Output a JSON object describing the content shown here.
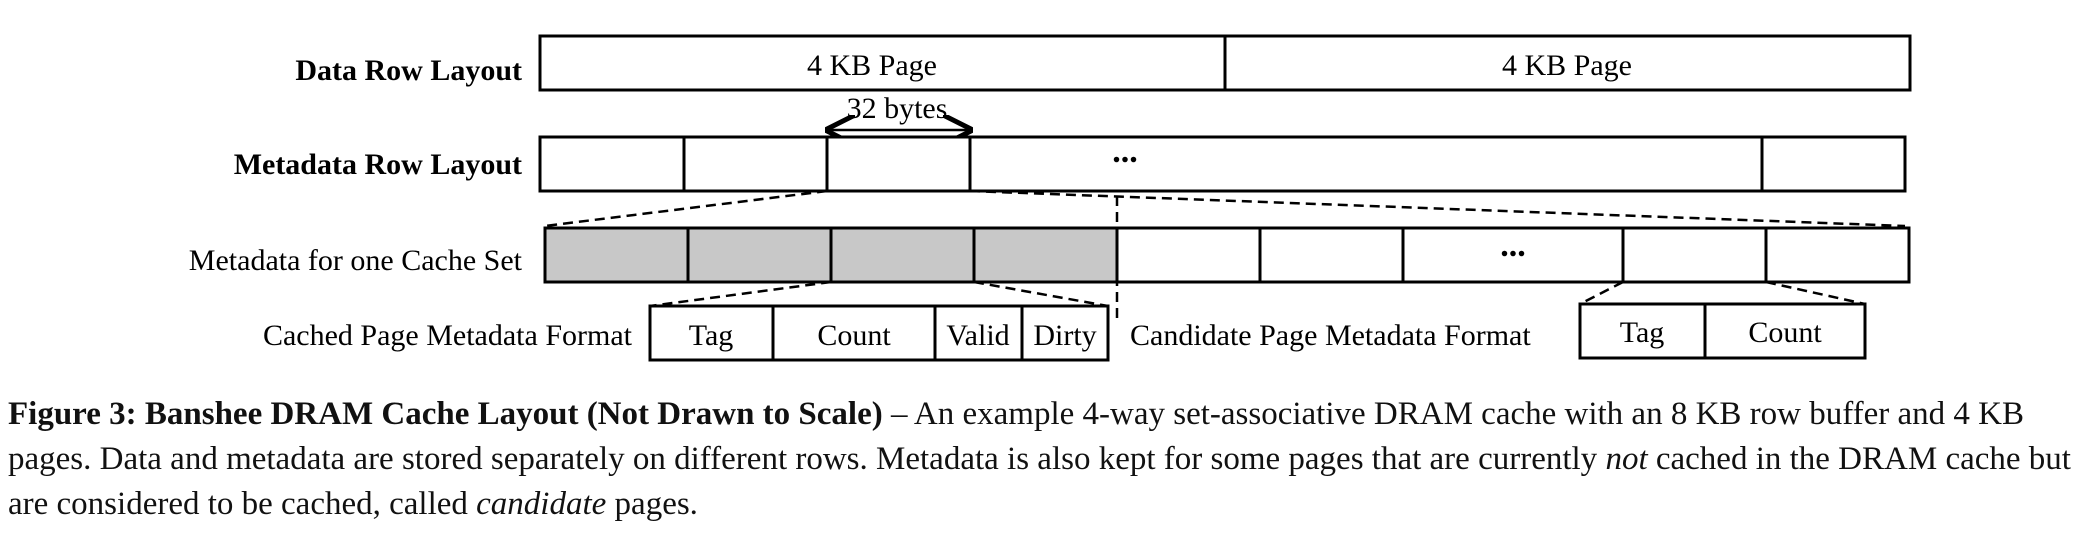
{
  "rows": {
    "data_row_label": "Data Row Layout",
    "data_row_pages": [
      "4 KB Page",
      "4 KB Page"
    ],
    "metadata_row_label": "Metadata Row Layout",
    "metadata_row_ellipsis": "...",
    "width_annotation": "32 bytes",
    "cache_set_label": "Metadata for one Cache Set",
    "cache_set_ellipsis": "..."
  },
  "cached_format": {
    "label": "Cached Page Metadata Format",
    "fields": [
      "Tag",
      "Count",
      "Valid",
      "Dirty"
    ]
  },
  "candidate_format": {
    "label": "Candidate Page Metadata Format",
    "fields": [
      "Tag",
      "Count"
    ]
  },
  "caption": {
    "title": "Figure 3: Banshee DRAM Cache Layout (Not Drawn to Scale)",
    "dash": " – ",
    "text_1": "An example 4-way set-associative DRAM cache with an 8 KB row buffer and 4 KB pages. Data and metadata are stored separately on different rows. Metadata is also kept for some pages that are currently ",
    "emph_1": "not",
    "text_2": " cached in the DRAM cache but are considered to be cached, called ",
    "emph_2": "candidate",
    "text_3": " pages."
  },
  "colors": {
    "shaded_cell": "#c8c8c8",
    "line": "#000000"
  }
}
